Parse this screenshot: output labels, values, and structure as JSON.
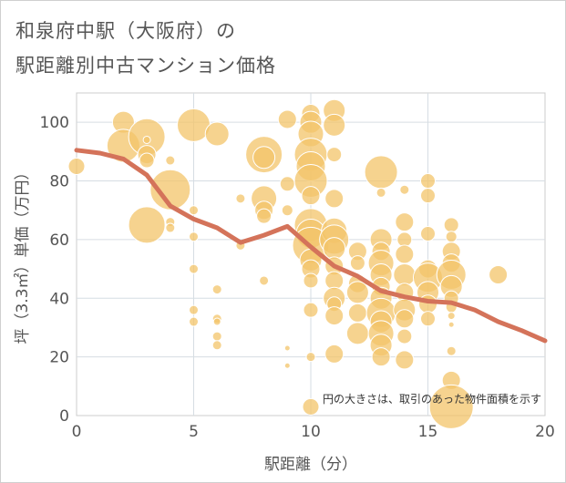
{
  "title_line1": "和泉府中駅（大阪府）の",
  "title_line2": "駅距離別中古マンション価格",
  "chart_data": {
    "type": "scatter",
    "title": "和泉府中駅（大阪府）の駅距離別中古マンション価格",
    "xlabel": "駅距離（分）",
    "ylabel": "坪（3.3㎡）単価（万円）",
    "xlim": [
      0,
      20
    ],
    "ylim": [
      0,
      110
    ],
    "xticks": [
      0,
      5,
      10,
      15,
      20
    ],
    "yticks": [
      0,
      20,
      40,
      60,
      80,
      100
    ],
    "grid": true,
    "note": "円の大きさは、取引のあった物件面積を示す",
    "bubble_color": "#f3c46a",
    "line_color": "#d4735a",
    "points": [
      {
        "x": 0,
        "y": 85,
        "s": 9
      },
      {
        "x": 2,
        "y": 100,
        "s": 12
      },
      {
        "x": 2,
        "y": 92,
        "s": 18
      },
      {
        "x": 3,
        "y": 95,
        "s": 20
      },
      {
        "x": 3,
        "y": 89,
        "s": 10
      },
      {
        "x": 3,
        "y": 87,
        "s": 8
      },
      {
        "x": 3,
        "y": 94,
        "s": 4
      },
      {
        "x": 3,
        "y": 65,
        "s": 20
      },
      {
        "x": 4,
        "y": 77,
        "s": 22
      },
      {
        "x": 4,
        "y": 66,
        "s": 5
      },
      {
        "x": 4,
        "y": 64,
        "s": 5
      },
      {
        "x": 4,
        "y": 87,
        "s": 5
      },
      {
        "x": 5,
        "y": 99,
        "s": 18
      },
      {
        "x": 5,
        "y": 70,
        "s": 5
      },
      {
        "x": 5,
        "y": 61,
        "s": 5
      },
      {
        "x": 5,
        "y": 50,
        "s": 5
      },
      {
        "x": 5,
        "y": 36,
        "s": 5
      },
      {
        "x": 5,
        "y": 32,
        "s": 5
      },
      {
        "x": 6,
        "y": 96,
        "s": 13
      },
      {
        "x": 6,
        "y": 43,
        "s": 5
      },
      {
        "x": 6,
        "y": 33,
        "s": 5
      },
      {
        "x": 6,
        "y": 32,
        "s": 4
      },
      {
        "x": 6,
        "y": 27,
        "s": 5
      },
      {
        "x": 6,
        "y": 24,
        "s": 5
      },
      {
        "x": 7,
        "y": 74,
        "s": 5
      },
      {
        "x": 7,
        "y": 58,
        "s": 5
      },
      {
        "x": 8,
        "y": 89,
        "s": 20
      },
      {
        "x": 8,
        "y": 88,
        "s": 12
      },
      {
        "x": 8,
        "y": 74,
        "s": 14
      },
      {
        "x": 8,
        "y": 70,
        "s": 10
      },
      {
        "x": 8,
        "y": 68,
        "s": 8
      },
      {
        "x": 8,
        "y": 46,
        "s": 5
      },
      {
        "x": 9,
        "y": 101,
        "s": 10
      },
      {
        "x": 9,
        "y": 79,
        "s": 8
      },
      {
        "x": 9,
        "y": 70,
        "s": 6
      },
      {
        "x": 9,
        "y": 23,
        "s": 3
      },
      {
        "x": 9,
        "y": 17,
        "s": 3
      },
      {
        "x": 10,
        "y": 103,
        "s": 10
      },
      {
        "x": 10,
        "y": 100,
        "s": 12
      },
      {
        "x": 10,
        "y": 96,
        "s": 14
      },
      {
        "x": 10,
        "y": 89,
        "s": 18
      },
      {
        "x": 10,
        "y": 85,
        "s": 16
      },
      {
        "x": 10,
        "y": 80,
        "s": 18
      },
      {
        "x": 10,
        "y": 75,
        "s": 10
      },
      {
        "x": 10,
        "y": 65,
        "s": 18
      },
      {
        "x": 10,
        "y": 62,
        "s": 16
      },
      {
        "x": 10,
        "y": 58,
        "s": 20
      },
      {
        "x": 10,
        "y": 53,
        "s": 12
      },
      {
        "x": 10,
        "y": 50,
        "s": 10
      },
      {
        "x": 10,
        "y": 46,
        "s": 8
      },
      {
        "x": 10,
        "y": 36,
        "s": 8
      },
      {
        "x": 10,
        "y": 20,
        "s": 5
      },
      {
        "x": 10,
        "y": 3,
        "s": 9
      },
      {
        "x": 11,
        "y": 104,
        "s": 12
      },
      {
        "x": 11,
        "y": 99,
        "s": 12
      },
      {
        "x": 11,
        "y": 89,
        "s": 8
      },
      {
        "x": 11,
        "y": 74,
        "s": 10
      },
      {
        "x": 11,
        "y": 63,
        "s": 14
      },
      {
        "x": 11,
        "y": 60,
        "s": 16
      },
      {
        "x": 11,
        "y": 57,
        "s": 12
      },
      {
        "x": 11,
        "y": 51,
        "s": 10
      },
      {
        "x": 11,
        "y": 46,
        "s": 10
      },
      {
        "x": 11,
        "y": 40,
        "s": 12
      },
      {
        "x": 11,
        "y": 38,
        "s": 8
      },
      {
        "x": 11,
        "y": 34,
        "s": 10
      },
      {
        "x": 11,
        "y": 21,
        "s": 10
      },
      {
        "x": 12,
        "y": 56,
        "s": 10
      },
      {
        "x": 12,
        "y": 52,
        "s": 8
      },
      {
        "x": 12,
        "y": 45,
        "s": 10
      },
      {
        "x": 12,
        "y": 42,
        "s": 12
      },
      {
        "x": 12,
        "y": 35,
        "s": 10
      },
      {
        "x": 12,
        "y": 28,
        "s": 12
      },
      {
        "x": 13,
        "y": 83,
        "s": 18
      },
      {
        "x": 13,
        "y": 76,
        "s": 5
      },
      {
        "x": 13,
        "y": 60,
        "s": 12
      },
      {
        "x": 13,
        "y": 56,
        "s": 10
      },
      {
        "x": 13,
        "y": 52,
        "s": 14
      },
      {
        "x": 13,
        "y": 48,
        "s": 12
      },
      {
        "x": 13,
        "y": 44,
        "s": 10
      },
      {
        "x": 13,
        "y": 40,
        "s": 12
      },
      {
        "x": 13,
        "y": 35,
        "s": 16
      },
      {
        "x": 13,
        "y": 32,
        "s": 12
      },
      {
        "x": 13,
        "y": 28,
        "s": 14
      },
      {
        "x": 13,
        "y": 24,
        "s": 12
      },
      {
        "x": 13,
        "y": 20,
        "s": 10
      },
      {
        "x": 14,
        "y": 77,
        "s": 5
      },
      {
        "x": 14,
        "y": 66,
        "s": 10
      },
      {
        "x": 14,
        "y": 60,
        "s": 8
      },
      {
        "x": 14,
        "y": 55,
        "s": 10
      },
      {
        "x": 14,
        "y": 48,
        "s": 12
      },
      {
        "x": 14,
        "y": 42,
        "s": 10
      },
      {
        "x": 14,
        "y": 36,
        "s": 12
      },
      {
        "x": 14,
        "y": 33,
        "s": 10
      },
      {
        "x": 14,
        "y": 27,
        "s": 8
      },
      {
        "x": 14,
        "y": 19,
        "s": 10
      },
      {
        "x": 15,
        "y": 80,
        "s": 8
      },
      {
        "x": 15,
        "y": 75,
        "s": 8
      },
      {
        "x": 15,
        "y": 62,
        "s": 8
      },
      {
        "x": 15,
        "y": 50,
        "s": 10
      },
      {
        "x": 15,
        "y": 47,
        "s": 16
      },
      {
        "x": 15,
        "y": 42,
        "s": 12
      },
      {
        "x": 15,
        "y": 38,
        "s": 10
      },
      {
        "x": 15,
        "y": 33,
        "s": 8
      },
      {
        "x": 16,
        "y": 65,
        "s": 8
      },
      {
        "x": 16,
        "y": 61,
        "s": 6
      },
      {
        "x": 16,
        "y": 56,
        "s": 10
      },
      {
        "x": 16,
        "y": 52,
        "s": 10
      },
      {
        "x": 16,
        "y": 48,
        "s": 16
      },
      {
        "x": 16,
        "y": 44,
        "s": 12
      },
      {
        "x": 16,
        "y": 40,
        "s": 8
      },
      {
        "x": 16,
        "y": 37,
        "s": 6
      },
      {
        "x": 16,
        "y": 34,
        "s": 4
      },
      {
        "x": 16,
        "y": 31,
        "s": 3
      },
      {
        "x": 16,
        "y": 22,
        "s": 5
      },
      {
        "x": 16,
        "y": 12,
        "s": 10
      },
      {
        "x": 16,
        "y": 3,
        "s": 24
      },
      {
        "x": 18,
        "y": 48,
        "s": 10
      }
    ],
    "trend": {
      "x": [
        0,
        1,
        2,
        3,
        4,
        5,
        6,
        7,
        8,
        9,
        10,
        11,
        12,
        13,
        14,
        15,
        16,
        17,
        18,
        19,
        20
      ],
      "y": [
        90.5,
        89.5,
        87.5,
        82,
        71.5,
        67,
        64,
        59,
        61.5,
        64.5,
        57.5,
        51,
        47.5,
        42.5,
        40.5,
        39,
        38.5,
        36,
        32,
        29,
        25.5
      ]
    }
  }
}
